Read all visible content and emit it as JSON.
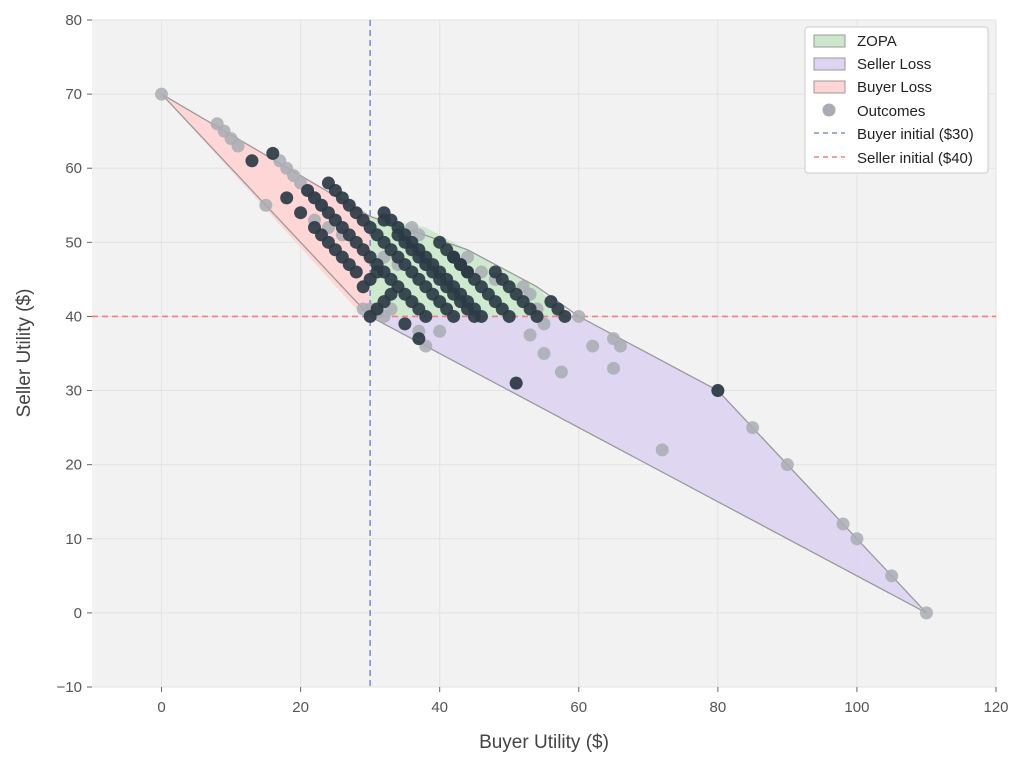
{
  "chart_data": {
    "type": "scatter",
    "xlabel": "Buyer Utility ($)",
    "ylabel": "Seller Utility ($)",
    "xlim": [
      -10,
      120
    ],
    "ylim": [
      -10,
      80
    ],
    "xticks": [
      0,
      20,
      40,
      60,
      80,
      100,
      120
    ],
    "yticks": [
      -10,
      0,
      10,
      20,
      30,
      40,
      50,
      60,
      70,
      80
    ],
    "grid": true,
    "background_color": "#f2f2f2",
    "legend_position": "top-right",
    "regions": [
      {
        "name": "ZOPA",
        "color": "#cce8cc",
        "edge_color": "#9a9a9a",
        "points": [
          [
            30,
            53.5
          ],
          [
            30,
            40
          ],
          [
            58,
            40
          ],
          [
            54,
            44
          ],
          [
            44,
            49
          ],
          [
            38,
            52
          ]
        ]
      },
      {
        "name": "Seller Loss",
        "color": "#ddd5f0",
        "edge_color": "#9a9a9a",
        "points": [
          [
            30,
            40
          ],
          [
            58,
            40
          ],
          [
            60,
            40
          ],
          [
            80,
            30
          ],
          [
            110,
            0
          ],
          [
            30,
            40
          ]
        ]
      },
      {
        "name": "Buyer Loss",
        "color": "#ffd4d4",
        "edge_color": "#9a9a9a",
        "points": [
          [
            0,
            70
          ],
          [
            30,
            53.5
          ],
          [
            30,
            40
          ],
          [
            28,
            41
          ],
          [
            0,
            70
          ]
        ]
      }
    ],
    "hull_outline": [
      [
        0,
        70
      ],
      [
        30,
        53.5
      ],
      [
        44,
        49
      ],
      [
        54,
        44
      ],
      [
        60,
        40
      ],
      [
        80,
        30
      ],
      [
        110,
        0
      ],
      [
        30,
        40
      ],
      [
        0,
        70
      ]
    ],
    "reference_lines": [
      {
        "name": "Buyer initial ($30)",
        "orientation": "vertical",
        "value": 30,
        "color": "#8090d0",
        "style": "dashed"
      },
      {
        "name": "Seller initial ($40)",
        "orientation": "horizontal",
        "value": 40,
        "color": "#f08080",
        "style": "dashed"
      }
    ],
    "series": [
      {
        "name": "Outcomes",
        "legend_color": "#a9adb3",
        "faint_color": "#a9adb3",
        "dark_color": "#2d3b45",
        "faint_points": [
          [
            0,
            70
          ],
          [
            8,
            66
          ],
          [
            9,
            65
          ],
          [
            10,
            64
          ],
          [
            11,
            63
          ],
          [
            15,
            55
          ],
          [
            17,
            61
          ],
          [
            18,
            60
          ],
          [
            19,
            59
          ],
          [
            20,
            58
          ],
          [
            21,
            57
          ],
          [
            22,
            56
          ],
          [
            23,
            55
          ],
          [
            22,
            53
          ],
          [
            24,
            52
          ],
          [
            26,
            51
          ],
          [
            29,
            41
          ],
          [
            30,
            41
          ],
          [
            31,
            40.5
          ],
          [
            32,
            40
          ],
          [
            33,
            41
          ],
          [
            32,
            48
          ],
          [
            36,
            52
          ],
          [
            37,
            51
          ],
          [
            34,
            47
          ],
          [
            38,
            47
          ],
          [
            37,
            38
          ],
          [
            38,
            36
          ],
          [
            40,
            38
          ],
          [
            44,
            48
          ],
          [
            46,
            46
          ],
          [
            48,
            45
          ],
          [
            52,
            44
          ],
          [
            53,
            43
          ],
          [
            54,
            41
          ],
          [
            55,
            39
          ],
          [
            53,
            37.5
          ],
          [
            55,
            35
          ],
          [
            57.5,
            32.5
          ],
          [
            60,
            40
          ],
          [
            62,
            36
          ],
          [
            65,
            37
          ],
          [
            65,
            33
          ],
          [
            66,
            36
          ],
          [
            72,
            22
          ],
          [
            80,
            30
          ],
          [
            85,
            25
          ],
          [
            90,
            20
          ],
          [
            98,
            12
          ],
          [
            100,
            10
          ],
          [
            105,
            5
          ],
          [
            110,
            0
          ],
          [
            51,
            31
          ]
        ],
        "dark_points": [
          [
            13,
            61
          ],
          [
            16,
            62
          ],
          [
            18,
            56
          ],
          [
            20,
            54
          ],
          [
            22,
            52
          ],
          [
            23,
            51
          ],
          [
            24,
            50
          ],
          [
            25,
            49
          ],
          [
            26,
            48
          ],
          [
            27,
            47
          ],
          [
            28,
            46
          ],
          [
            24,
            58
          ],
          [
            25,
            57
          ],
          [
            26,
            56
          ],
          [
            27,
            55
          ],
          [
            28,
            54
          ],
          [
            29,
            53
          ],
          [
            30,
            52
          ],
          [
            31,
            51
          ],
          [
            32,
            50
          ],
          [
            33,
            49
          ],
          [
            34,
            48
          ],
          [
            35,
            47
          ],
          [
            36,
            46
          ],
          [
            37,
            45
          ],
          [
            38,
            44
          ],
          [
            39,
            43
          ],
          [
            40,
            42
          ],
          [
            41,
            41
          ],
          [
            42,
            40
          ],
          [
            21,
            57
          ],
          [
            22,
            56
          ],
          [
            23,
            55
          ],
          [
            24,
            54
          ],
          [
            25,
            53
          ],
          [
            26,
            52
          ],
          [
            27,
            51
          ],
          [
            28,
            50
          ],
          [
            29,
            49
          ],
          [
            30,
            48
          ],
          [
            31,
            47
          ],
          [
            32,
            46
          ],
          [
            33,
            45
          ],
          [
            34,
            44
          ],
          [
            35,
            43
          ],
          [
            36,
            42
          ],
          [
            37,
            41
          ],
          [
            38,
            40
          ],
          [
            30,
            40
          ],
          [
            31,
            41
          ],
          [
            32,
            42
          ],
          [
            33,
            43
          ],
          [
            29,
            44
          ],
          [
            30,
            45
          ],
          [
            31,
            46
          ],
          [
            32,
            53
          ],
          [
            32,
            54
          ],
          [
            33,
            53
          ],
          [
            34,
            52
          ],
          [
            35,
            51
          ],
          [
            36,
            50
          ],
          [
            37,
            49
          ],
          [
            38,
            48
          ],
          [
            39,
            47
          ],
          [
            40,
            46
          ],
          [
            41,
            45
          ],
          [
            42,
            44
          ],
          [
            43,
            43
          ],
          [
            44,
            42
          ],
          [
            45,
            41
          ],
          [
            46,
            40
          ],
          [
            34,
            51
          ],
          [
            35,
            50
          ],
          [
            36,
            49
          ],
          [
            37,
            48
          ],
          [
            38,
            47
          ],
          [
            39,
            46
          ],
          [
            40,
            45
          ],
          [
            41,
            44
          ],
          [
            42,
            43
          ],
          [
            43,
            42
          ],
          [
            44,
            41
          ],
          [
            45,
            40
          ],
          [
            40,
            50
          ],
          [
            41,
            49
          ],
          [
            42,
            48
          ],
          [
            43,
            47
          ],
          [
            44,
            46
          ],
          [
            45,
            45
          ],
          [
            46,
            44
          ],
          [
            47,
            43
          ],
          [
            48,
            42
          ],
          [
            49,
            41
          ],
          [
            50,
            40
          ],
          [
            42,
            48
          ],
          [
            43,
            47
          ],
          [
            44,
            46
          ],
          [
            48,
            46
          ],
          [
            49,
            45
          ],
          [
            50,
            44
          ],
          [
            51,
            43
          ],
          [
            52,
            42
          ],
          [
            53,
            41
          ],
          [
            54,
            40
          ],
          [
            56,
            42
          ],
          [
            57,
            41
          ],
          [
            58,
            40
          ],
          [
            35,
            39
          ],
          [
            37,
            37
          ],
          [
            51,
            31
          ],
          [
            80,
            30
          ]
        ]
      }
    ]
  }
}
